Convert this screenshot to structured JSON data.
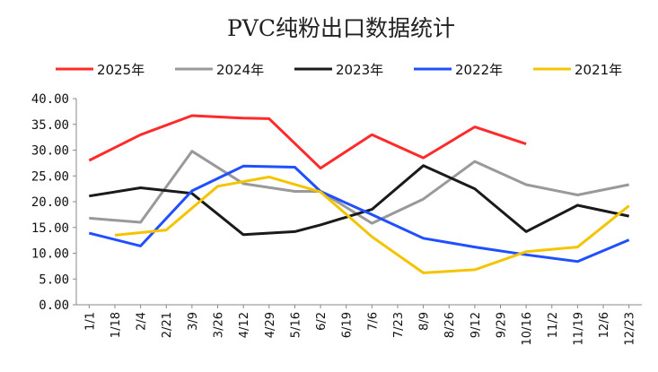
{
  "chart_data": {
    "type": "line",
    "title": "PVC纯粉出口数据统计",
    "xlabel": "",
    "ylabel": "",
    "ylim": [
      0,
      40
    ],
    "y_ticks": [
      "0.00",
      "5.00",
      "10.00",
      "15.00",
      "20.00",
      "25.00",
      "30.00",
      "35.00",
      "40.00"
    ],
    "categories": [
      "1/1",
      "1/18",
      "2/4",
      "2/21",
      "3/9",
      "3/26",
      "4/12",
      "4/29",
      "5/16",
      "6/2",
      "6/19",
      "7/6",
      "7/23",
      "8/9",
      "8/26",
      "9/12",
      "9/29",
      "10/16",
      "11/2",
      "11/19",
      "12/6",
      "12/23"
    ],
    "legend_position": "top",
    "grid": false,
    "series": [
      {
        "name": "2025年",
        "color": "#ff2a2a",
        "points": [
          [
            "1/1",
            28.0
          ],
          [
            "2/4",
            33.0
          ],
          [
            "3/9",
            36.7
          ],
          [
            "4/12",
            36.2
          ],
          [
            "4/29",
            36.1
          ],
          [
            "6/2",
            26.5
          ],
          [
            "7/6",
            33.0
          ],
          [
            "8/9",
            28.5
          ],
          [
            "9/12",
            34.5
          ],
          [
            "10/16",
            31.2
          ]
        ]
      },
      {
        "name": "2024年",
        "color": "#999999",
        "points": [
          [
            "1/1",
            16.8
          ],
          [
            "2/4",
            16.0
          ],
          [
            "3/9",
            29.8
          ],
          [
            "4/12",
            23.5
          ],
          [
            "5/16",
            22.0
          ],
          [
            "6/2",
            22.0
          ],
          [
            "7/6",
            15.8
          ],
          [
            "8/9",
            20.5
          ],
          [
            "9/12",
            27.8
          ],
          [
            "10/16",
            23.3
          ],
          [
            "11/19",
            21.3
          ],
          [
            "12/23",
            23.3
          ]
        ]
      },
      {
        "name": "2023年",
        "color": "#1a1a1a",
        "points": [
          [
            "1/1",
            21.1
          ],
          [
            "2/4",
            22.7
          ],
          [
            "3/9",
            21.6
          ],
          [
            "4/12",
            13.6
          ],
          [
            "5/16",
            14.2
          ],
          [
            "6/2",
            15.5
          ],
          [
            "7/6",
            18.5
          ],
          [
            "8/9",
            27.0
          ],
          [
            "9/12",
            22.5
          ],
          [
            "10/16",
            14.2
          ],
          [
            "11/19",
            19.3
          ],
          [
            "12/23",
            17.2
          ]
        ]
      },
      {
        "name": "2022年",
        "color": "#1f4fff",
        "points": [
          [
            "1/1",
            13.9
          ],
          [
            "2/4",
            11.4
          ],
          [
            "3/9",
            22.1
          ],
          [
            "4/12",
            26.9
          ],
          [
            "5/16",
            26.7
          ],
          [
            "6/2",
            22.0
          ],
          [
            "7/6",
            17.5
          ],
          [
            "8/9",
            12.9
          ],
          [
            "9/12",
            11.2
          ],
          [
            "10/16",
            9.7
          ],
          [
            "11/19",
            8.4
          ],
          [
            "12/23",
            12.6
          ]
        ]
      },
      {
        "name": "2021年",
        "color": "#f5c400",
        "points": [
          [
            "1/18",
            13.5
          ],
          [
            "2/21",
            14.5
          ],
          [
            "3/26",
            23.0
          ],
          [
            "4/29",
            24.8
          ],
          [
            "6/2",
            21.9
          ],
          [
            "7/6",
            13.2
          ],
          [
            "8/9",
            6.2
          ],
          [
            "9/12",
            6.8
          ],
          [
            "10/16",
            10.3
          ],
          [
            "11/19",
            11.2
          ],
          [
            "12/23",
            19.2
          ]
        ]
      }
    ]
  }
}
